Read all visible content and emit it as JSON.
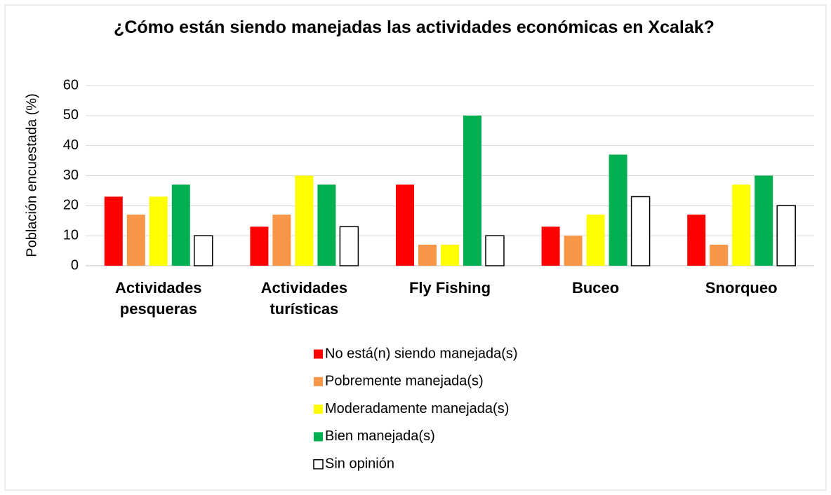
{
  "chart_data": {
    "type": "bar",
    "title": "¿Cómo están siendo manejadas las actividades económicas en Xcalak?",
    "y_label": "Población encuestada (%)",
    "categories": [
      "Actividades pesqueras",
      "Actividades turísticas",
      "Fly Fishing",
      "Buceo",
      "Snorqueo"
    ],
    "series": [
      {
        "name": "No está(n) siendo manejada(s)",
        "color": "#ff0000",
        "values": [
          23,
          13,
          27,
          13,
          17
        ]
      },
      {
        "name": "Pobremente manejada(s)",
        "color": "#f79646",
        "values": [
          17,
          17,
          7,
          10,
          7
        ]
      },
      {
        "name": "Moderadamente manejada(s)",
        "color": "#ffff00",
        "values": [
          23,
          30,
          7,
          17,
          27
        ]
      },
      {
        "name": "Bien manejada(s)",
        "color": "#00b050",
        "values": [
          27,
          27,
          50,
          37,
          30
        ]
      },
      {
        "name": "Sin opinión",
        "color": "#ffffff",
        "values": [
          10,
          13,
          10,
          23,
          20
        ]
      }
    ],
    "ylim": [
      0,
      60
    ],
    "yticks": [
      0,
      10,
      20,
      30,
      40,
      50,
      60
    ],
    "grid": true,
    "legend": "bottom"
  }
}
